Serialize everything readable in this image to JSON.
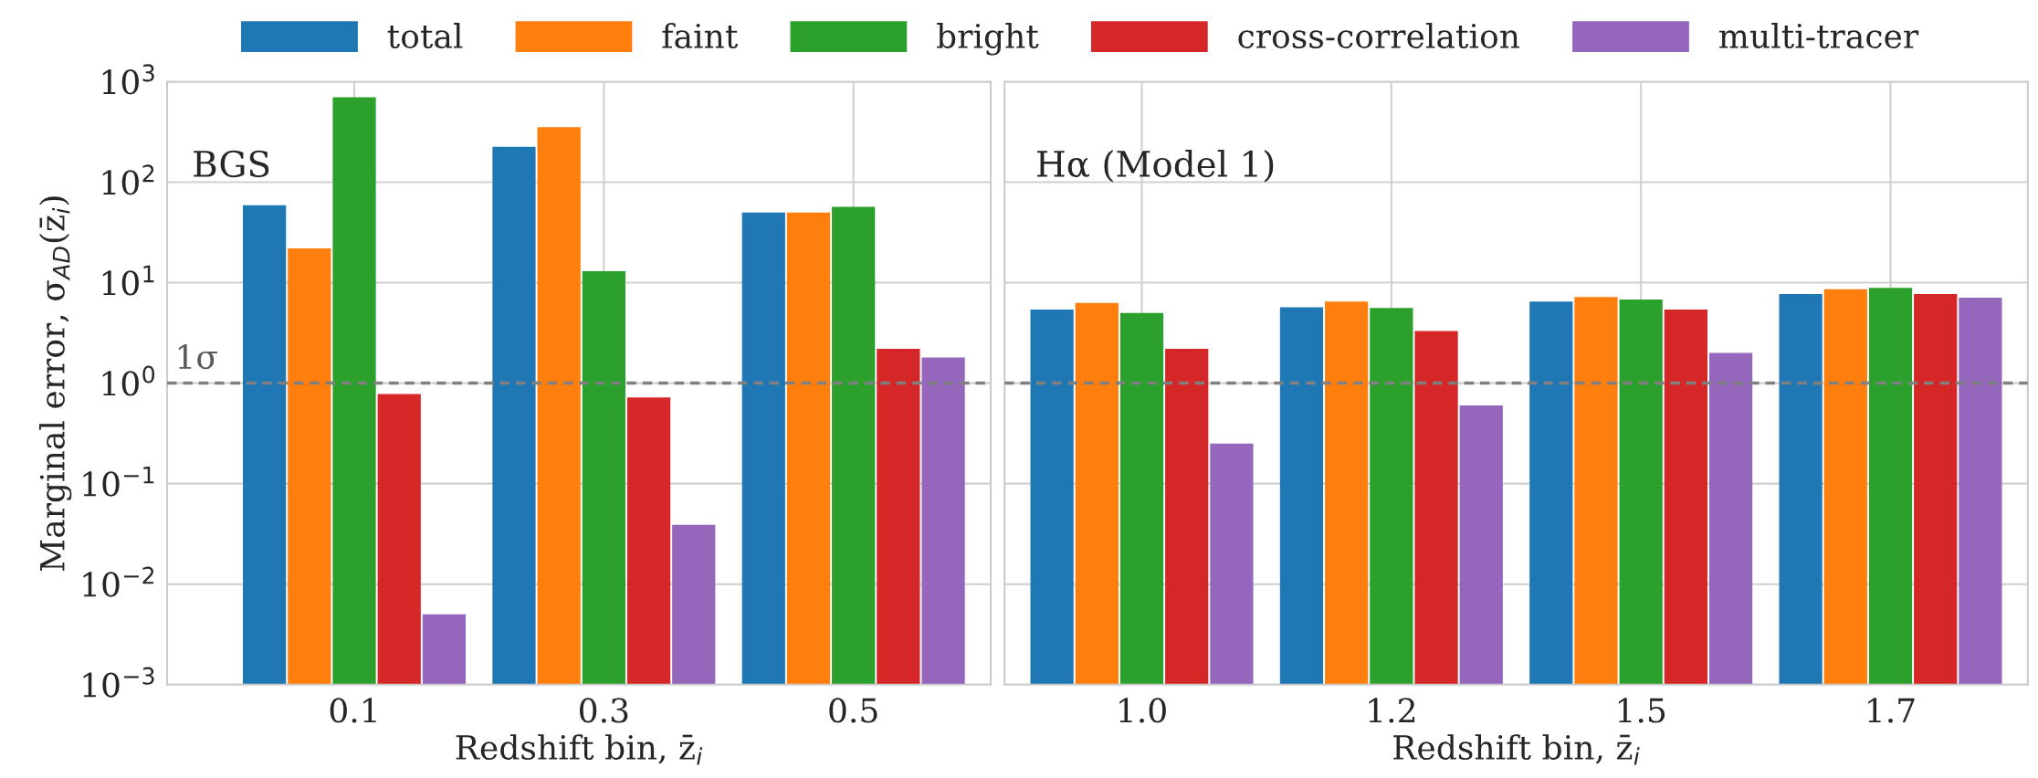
{
  "chart_data": [
    {
      "type": "bar",
      "xlabel": "Redshift bin, z̄$_{i}$",
      "ylabel": "Marginal error, σ$_{AD}$(z̄$_{i}$)",
      "categories": [
        "0.1",
        "0.3",
        "0.5"
      ],
      "log": "y",
      "grid": true,
      "legend": "top",
      "ylim": [
        0.001,
        1000
      ],
      "yticks": [
        {
          "value": 0.001,
          "label": "10$^{−3}$"
        },
        {
          "value": 0.01,
          "label": "10$^{−2}$"
        },
        {
          "value": 0.1,
          "label": "10$^{−1}$"
        },
        {
          "value": 1,
          "label": "10$^{0}$"
        },
        {
          "value": 10,
          "label": "10$^{1}$"
        },
        {
          "value": 100,
          "label": "10$^{2}$"
        },
        {
          "value": 1000,
          "label": "10$^{3}$"
        }
      ],
      "annotations": [
        "BGS"
      ],
      "ref_lines": [
        {
          "axis": "y",
          "value": 1,
          "label": "1σ",
          "color": "#808080",
          "line_style": "dashed"
        }
      ],
      "series": [
        {
          "name": "total",
          "color": "#1f77b4",
          "values": [
            59,
            225,
            50
          ]
        },
        {
          "name": "faint",
          "color": "#ff7f0e",
          "values": [
            22,
            353,
            50
          ]
        },
        {
          "name": "bright",
          "color": "#2ca02c",
          "values": [
            700,
            13,
            57
          ]
        },
        {
          "name": "cross-correlation",
          "color": "#d62728",
          "values": [
            0.78,
            0.72,
            2.2
          ]
        },
        {
          "name": "multi-tracer",
          "color": "#9467bd",
          "values": [
            0.005,
            0.039,
            1.8
          ]
        }
      ]
    },
    {
      "type": "bar",
      "xlabel": "Redshift bin, z̄$_{i}$",
      "categories": [
        "1.0",
        "1.2",
        "1.5",
        "1.7"
      ],
      "log": "y",
      "grid": true,
      "tick_labels": "x",
      "ylim": [
        0.001,
        1000
      ],
      "yticks": [
        {
          "value": 0.001,
          "label": null
        },
        {
          "value": 0.01,
          "label": null
        },
        {
          "value": 0.1,
          "label": null
        },
        {
          "value": 1,
          "label": null
        },
        {
          "value": 10,
          "label": null
        },
        {
          "value": 100,
          "label": null
        },
        {
          "value": 1000,
          "label": null
        }
      ],
      "annotations": [
        "Hα (Model 1)"
      ],
      "ref_lines": [
        {
          "axis": "y",
          "value": 1,
          "color": "#808080",
          "line_style": "dashed"
        }
      ],
      "series": [
        {
          "color": "#1f77b4",
          "values": [
            5.4,
            5.7,
            6.5,
            7.7
          ]
        },
        {
          "color": "#ff7f0e",
          "values": [
            6.3,
            6.5,
            7.2,
            8.6
          ]
        },
        {
          "color": "#2ca02c",
          "values": [
            5.0,
            5.6,
            6.8,
            8.9
          ]
        },
        {
          "color": "#d62728",
          "values": [
            2.2,
            3.3,
            5.4,
            7.7
          ]
        },
        {
          "color": "#9467bd",
          "values": [
            0.25,
            0.6,
            2.0,
            7.1
          ]
        }
      ]
    }
  ]
}
